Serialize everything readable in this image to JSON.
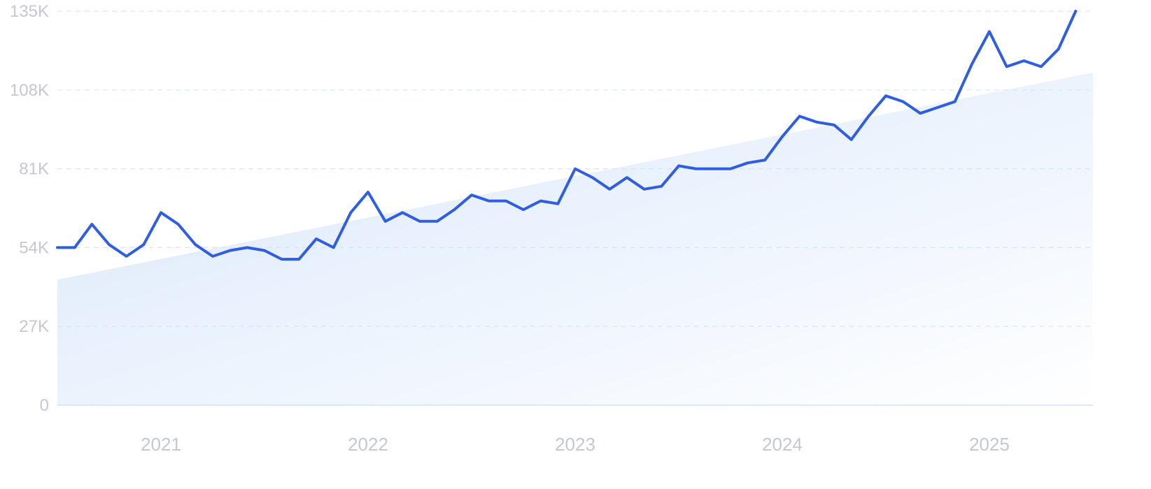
{
  "chart_data": {
    "type": "line",
    "title": "",
    "xlabel": "",
    "ylabel": "",
    "ylim": [
      0,
      135000
    ],
    "xlim": [
      "2020-07",
      "2025-07"
    ],
    "grid": true,
    "y_tick_labels": [
      "0",
      "27K",
      "54K",
      "81K",
      "108K",
      "135K"
    ],
    "y_tick_values": [
      0,
      27000,
      54000,
      81000,
      108000,
      135000
    ],
    "x_tick_labels": [
      "2021",
      "2022",
      "2023",
      "2024",
      "2025"
    ],
    "x_tick_values": [
      "2021-01",
      "2022-01",
      "2023-01",
      "2024-01",
      "2025-01"
    ],
    "line_color": "#2f5fe0",
    "trend_fill_color": "#dceafb",
    "series": [
      {
        "x": [
          "2020-07",
          "2020-08",
          "2020-09",
          "2020-10",
          "2020-11",
          "2020-12",
          "2021-01",
          "2021-02",
          "2021-03",
          "2021-04",
          "2021-05",
          "2021-06",
          "2021-07",
          "2021-08",
          "2021-09",
          "2021-10",
          "2021-11",
          "2021-12",
          "2022-01",
          "2022-02",
          "2022-03",
          "2022-04",
          "2022-05",
          "2022-06",
          "2022-07",
          "2022-08",
          "2022-09",
          "2022-10",
          "2022-11",
          "2022-12",
          "2023-01",
          "2023-02",
          "2023-03",
          "2023-04",
          "2023-05",
          "2023-06",
          "2023-07",
          "2023-08",
          "2023-09",
          "2023-10",
          "2023-11",
          "2023-12",
          "2024-01",
          "2024-02",
          "2024-03",
          "2024-04",
          "2024-05",
          "2024-06",
          "2024-07",
          "2024-08",
          "2024-09",
          "2024-10",
          "2024-11",
          "2024-12",
          "2025-01",
          "2025-02",
          "2025-03",
          "2025-04",
          "2025-05",
          "2025-06"
        ],
        "values": [
          54000,
          54000,
          62000,
          55000,
          51000,
          55000,
          66000,
          62000,
          55000,
          51000,
          53000,
          54000,
          53000,
          50000,
          50000,
          57000,
          54000,
          66000,
          73000,
          63000,
          66000,
          63000,
          63000,
          67000,
          72000,
          70000,
          70000,
          67000,
          70000,
          69000,
          81000,
          78000,
          74000,
          78000,
          74000,
          75000,
          82000,
          81000,
          81000,
          81000,
          83000,
          84000,
          92000,
          99000,
          97000,
          96000,
          91000,
          99000,
          106000,
          104000,
          100000,
          102000,
          104000,
          117000,
          128000,
          116000,
          118000,
          116000,
          122000,
          135000
        ]
      }
    ],
    "trend": {
      "start": 43000,
      "end": 114000
    }
  }
}
